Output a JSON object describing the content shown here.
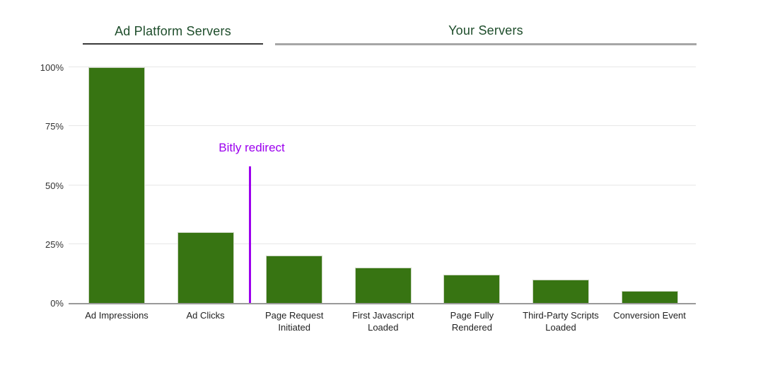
{
  "chart_data": {
    "type": "bar",
    "title": "",
    "xlabel": "",
    "ylabel": "",
    "categories": [
      "Ad Impressions",
      "Ad Clicks",
      "Page Request Initiated",
      "First Javascript Loaded",
      "Page Fully Rendered",
      "Third-Party Scripts Loaded",
      "Conversion Event"
    ],
    "values": [
      100,
      30,
      20,
      15,
      12,
      10,
      5
    ],
    "unit": "%",
    "ylim": [
      0,
      100
    ],
    "ytick_values": [
      0,
      25,
      50,
      75,
      100
    ],
    "ytick_labels": [
      "0%",
      "25%",
      "50%",
      "75%",
      "100%"
    ],
    "grid": true,
    "legend": "none",
    "bar_color": "#377412",
    "groups": [
      {
        "label": "Ad Platform Servers",
        "categories": [
          "Ad Impressions",
          "Ad Clicks"
        ],
        "underline_color": "#3b3b3b"
      },
      {
        "label": "Your Servers",
        "categories": [
          "Page Request Initiated",
          "First Javascript Loaded",
          "Page Fully Rendered",
          "Third-Party Scripts Loaded",
          "Conversion Event"
        ],
        "underline_color": "#a6a6a6"
      }
    ],
    "header_color": "#1e4d2b",
    "annotation": {
      "label": "Bitly redirect",
      "color": "#9c00ee",
      "position": "between Ad Clicks and Page Request Initiated",
      "between_indices": [
        1,
        2
      ],
      "line_top_value": 58
    }
  }
}
